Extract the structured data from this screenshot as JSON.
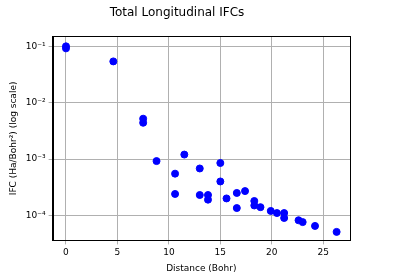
{
  "chart_data": {
    "type": "scatter",
    "title": "Total Longitudinal IFCs",
    "x_label": "Distance (Bohr)",
    "y_label": "IFC (Ha/Bohr²) (log scale)",
    "x": [
      0,
      0,
      4.6,
      7.5,
      7.5,
      8.8,
      10.6,
      10.6,
      11.5,
      13.0,
      13.0,
      13.8,
      13.8,
      15.0,
      15.0,
      15.6,
      16.6,
      16.6,
      17.4,
      18.3,
      18.3,
      18.9,
      19.9,
      20.5,
      21.2,
      21.2,
      22.6,
      23.0,
      24.2,
      26.3
    ],
    "values": [
      0.1,
      0.092,
      0.054,
      0.0052,
      0.0044,
      0.00092,
      0.00055,
      0.00024,
      0.0012,
      0.00068,
      0.00023,
      0.00023,
      0.00019,
      0.00085,
      0.0004,
      0.0002,
      0.00025,
      0.000135,
      0.00027,
      0.00018,
      0.00015,
      0.00014,
      0.00012,
      0.00011,
      0.00011,
      9e-05,
      8.2e-05,
      7.6e-05,
      6.5e-05,
      5.1e-05
    ],
    "color": "#0000ff",
    "marker": "circle",
    "xlim": [
      -1.3,
      27.6
    ],
    "xticks": [
      0,
      5,
      10,
      15,
      20,
      25
    ],
    "ylim": [
      3.6e-05,
      0.15
    ],
    "yticks": [
      {
        "value": 0.0001,
        "label": "10⁻⁴"
      },
      {
        "value": 0.001,
        "label": "10⁻³"
      },
      {
        "value": 0.01,
        "label": "10⁻²"
      },
      {
        "value": 0.1,
        "label": "10⁻¹"
      }
    ],
    "log": "y",
    "grid": true
  }
}
